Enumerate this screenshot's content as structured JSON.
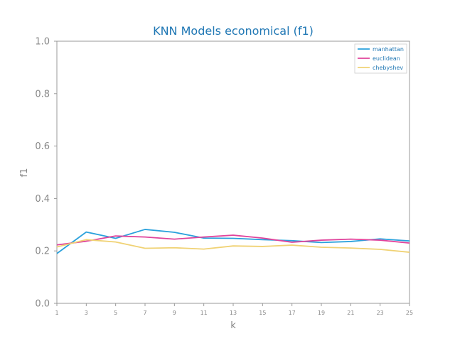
{
  "chart_data": {
    "type": "line",
    "title": "KNN Models economical (f1)",
    "xlabel": "k",
    "ylabel": "f1",
    "x": [
      1,
      3,
      5,
      7,
      9,
      11,
      13,
      15,
      17,
      19,
      21,
      23,
      25
    ],
    "x_tick_labels": [
      "1",
      "3",
      "5",
      "7",
      "9",
      "11",
      "13",
      "15",
      "17",
      "19",
      "21",
      "23",
      "25"
    ],
    "y_tick_labels": [
      "0.0",
      "0.2",
      "0.4",
      "0.6",
      "0.8",
      "1.0"
    ],
    "xlim": [
      1,
      25
    ],
    "ylim": [
      0.0,
      1.0
    ],
    "grid": false,
    "legend_position": "top-right",
    "series": [
      {
        "name": "manhattan",
        "color": "#2aa1dc",
        "values": [
          0.19,
          0.272,
          0.248,
          0.282,
          0.271,
          0.249,
          0.248,
          0.243,
          0.239,
          0.232,
          0.236,
          0.246,
          0.238
        ]
      },
      {
        "name": "euclidean",
        "color": "#e0449c",
        "values": [
          0.223,
          0.237,
          0.257,
          0.253,
          0.245,
          0.253,
          0.26,
          0.249,
          0.233,
          0.241,
          0.245,
          0.241,
          0.23
        ]
      },
      {
        "name": "chebyshev",
        "color": "#f0d274",
        "values": [
          0.215,
          0.243,
          0.234,
          0.21,
          0.212,
          0.207,
          0.219,
          0.217,
          0.222,
          0.214,
          0.211,
          0.206,
          0.195
        ]
      }
    ]
  }
}
